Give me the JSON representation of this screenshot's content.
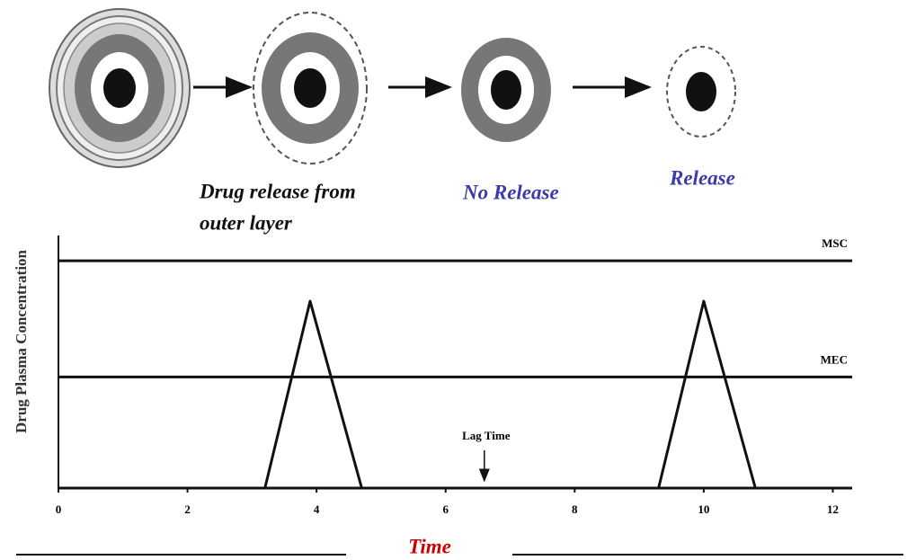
{
  "diagram": {
    "labels": {
      "outer": [
        "Drug release from",
        "outer layer"
      ],
      "no_release": "No Release",
      "release": "Release"
    }
  },
  "chart_data": {
    "type": "line",
    "y_label": "Drug Plasma Concentration",
    "x_label": "Time",
    "x": [
      3.2,
      3.9,
      4.7,
      9.3,
      10.0,
      10.8
    ],
    "values": [
      0,
      74,
      0,
      0,
      74,
      0
    ],
    "color": "#111111",
    "xlim": [
      0,
      12.3
    ],
    "ylim": [
      0,
      100
    ],
    "xticks": [
      0,
      2,
      4,
      6,
      8,
      10,
      12
    ],
    "reference_lines": [
      {
        "label": "MSC",
        "value": 90
      },
      {
        "label": "MEC",
        "value": 44
      }
    ],
    "annotation": {
      "text": "Lag Time",
      "x": 6.6
    }
  }
}
